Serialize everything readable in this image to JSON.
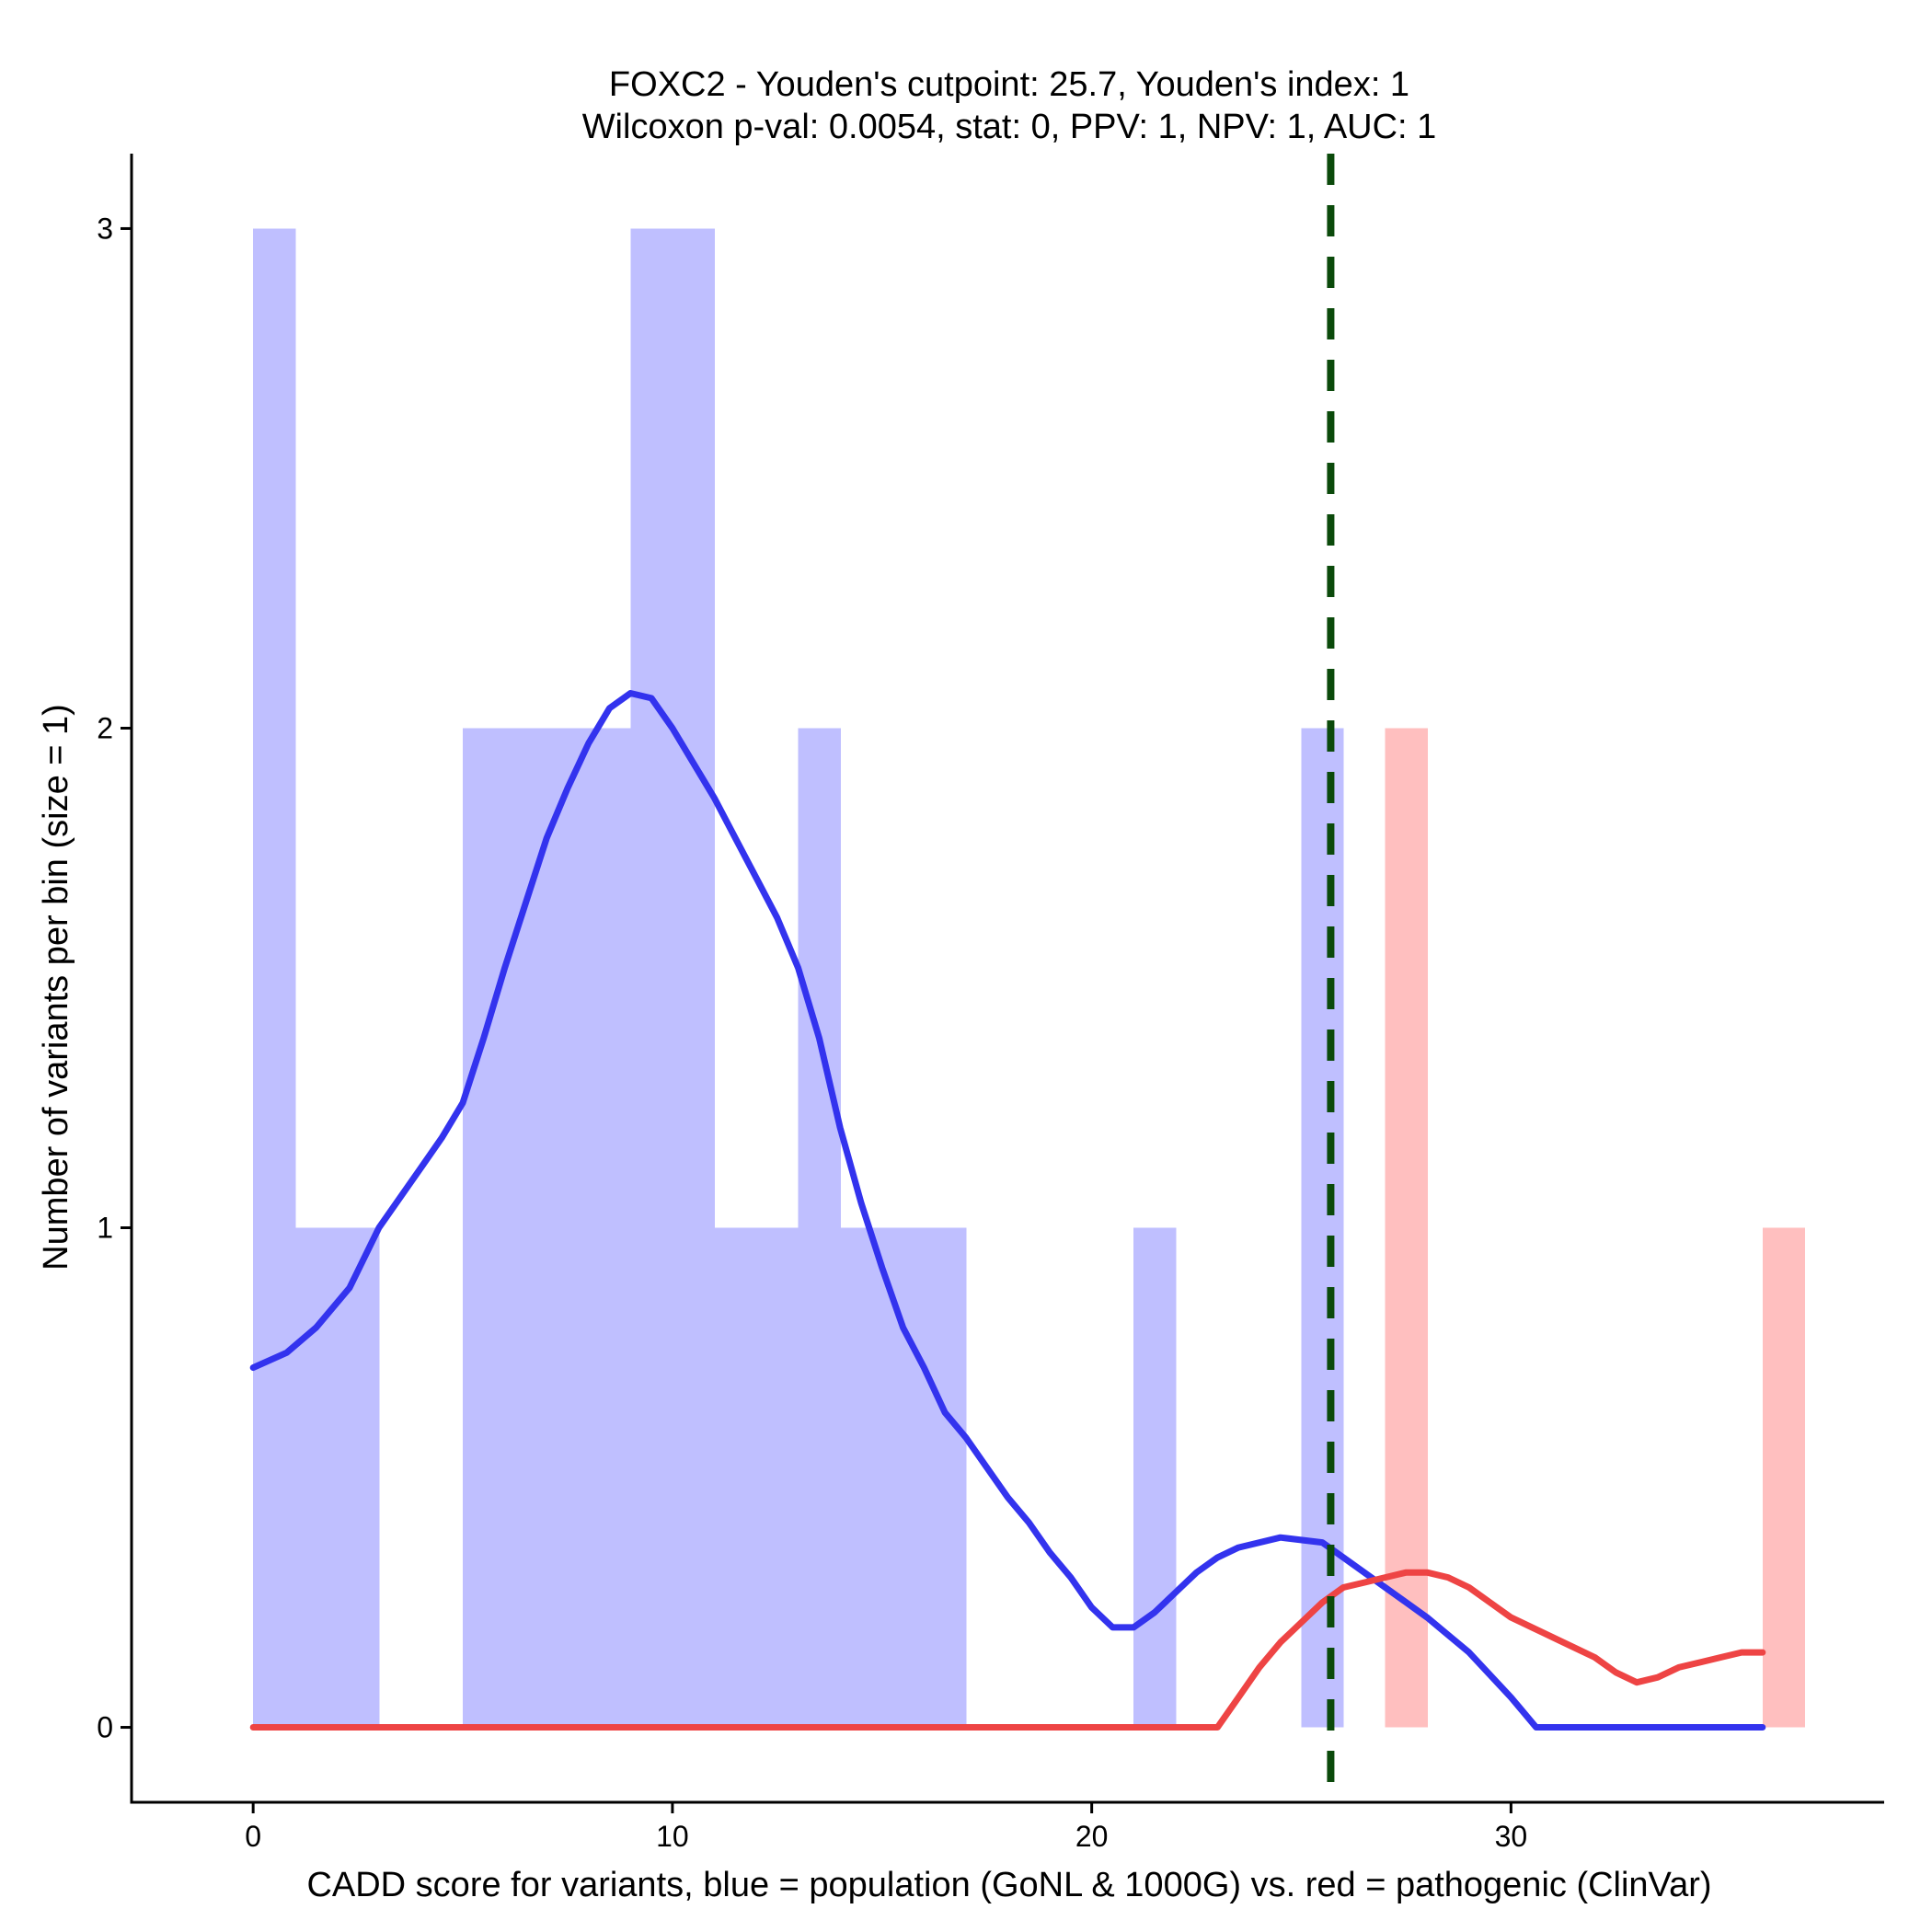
{
  "chart_data": {
    "type": "bar",
    "title": "FOXC2 - Youden's cutpoint: 25.7, Youden's index: 1",
    "subtitle": "Wilcoxon p-val: 0.0054, stat: 0, PPV: 1, NPV: 1, AUC: 1",
    "xlabel": "CADD score for variants, blue = population (GoNL & 1000G) vs. red = pathogenic (ClinVar)",
    "ylabel": "Number of variants per bin (size = 1)",
    "xlim": [
      -2.9,
      38.9
    ],
    "ylim": [
      -0.15,
      3.15
    ],
    "x_ticks": [
      0,
      10,
      20,
      30
    ],
    "y_ticks": [
      0,
      1,
      2,
      3
    ],
    "grid": false,
    "bin_width": 1,
    "series": [
      {
        "color": "#BFBFFF",
        "kind": "histogram",
        "bins": [
          {
            "start": 0,
            "count": 3
          },
          {
            "start": 1,
            "count": 1
          },
          {
            "start": 2,
            "count": 1
          },
          {
            "start": 5,
            "count": 2
          },
          {
            "start": 6,
            "count": 2
          },
          {
            "start": 7,
            "count": 2
          },
          {
            "start": 8,
            "count": 2
          },
          {
            "start": 9,
            "count": 3
          },
          {
            "start": 10,
            "count": 3
          },
          {
            "start": 11,
            "count": 1
          },
          {
            "start": 12,
            "count": 1
          },
          {
            "start": 13,
            "count": 2
          },
          {
            "start": 14,
            "count": 1
          },
          {
            "start": 15,
            "count": 1
          },
          {
            "start": 16,
            "count": 1
          },
          {
            "start": 21,
            "count": 1
          },
          {
            "start": 25,
            "count": 2
          }
        ]
      },
      {
        "color": "#FFBFBF",
        "kind": "histogram",
        "bins": [
          {
            "start": 27,
            "count": 2
          },
          {
            "start": 36,
            "count": 1
          }
        ]
      }
    ],
    "density_lines": [
      {
        "color": "#3333EE",
        "points": [
          [
            0,
            0.72
          ],
          [
            0.8,
            0.75
          ],
          [
            1.5,
            0.8
          ],
          [
            2.3,
            0.88
          ],
          [
            3,
            1.0
          ],
          [
            4,
            1.12
          ],
          [
            4.5,
            1.18
          ],
          [
            5,
            1.25
          ],
          [
            5.5,
            1.38
          ],
          [
            6,
            1.52
          ],
          [
            6.5,
            1.65
          ],
          [
            7,
            1.78
          ],
          [
            7.5,
            1.88
          ],
          [
            8,
            1.97
          ],
          [
            8.5,
            2.04
          ],
          [
            9,
            2.07
          ],
          [
            9.5,
            2.06
          ],
          [
            10,
            2.0
          ],
          [
            10.5,
            1.93
          ],
          [
            11,
            1.86
          ],
          [
            11.5,
            1.78
          ],
          [
            12,
            1.7
          ],
          [
            12.5,
            1.62
          ],
          [
            13,
            1.52
          ],
          [
            13.5,
            1.38
          ],
          [
            14,
            1.2
          ],
          [
            14.5,
            1.05
          ],
          [
            15,
            0.92
          ],
          [
            15.5,
            0.8
          ],
          [
            16,
            0.72
          ],
          [
            16.5,
            0.63
          ],
          [
            17,
            0.58
          ],
          [
            17.5,
            0.52
          ],
          [
            18,
            0.46
          ],
          [
            18.5,
            0.41
          ],
          [
            19,
            0.35
          ],
          [
            19.5,
            0.3
          ],
          [
            20,
            0.24
          ],
          [
            20.5,
            0.2
          ],
          [
            21,
            0.2
          ],
          [
            21.5,
            0.23
          ],
          [
            22,
            0.27
          ],
          [
            22.5,
            0.31
          ],
          [
            23,
            0.34
          ],
          [
            23.5,
            0.36
          ],
          [
            24.5,
            0.38
          ],
          [
            25.5,
            0.37
          ],
          [
            26,
            0.34
          ],
          [
            27,
            0.28
          ],
          [
            28,
            0.22
          ],
          [
            29,
            0.15
          ],
          [
            30,
            0.06
          ],
          [
            30.6,
            0.0
          ],
          [
            36,
            0.0
          ]
        ]
      },
      {
        "color": "#EE4444",
        "points": [
          [
            0,
            0.0
          ],
          [
            23,
            0.0
          ],
          [
            23.5,
            0.06
          ],
          [
            24,
            0.12
          ],
          [
            24.5,
            0.17
          ],
          [
            25,
            0.21
          ],
          [
            25.5,
            0.25
          ],
          [
            26,
            0.28
          ],
          [
            26.5,
            0.29
          ],
          [
            27,
            0.3
          ],
          [
            27.5,
            0.31
          ],
          [
            28,
            0.31
          ],
          [
            28.5,
            0.3
          ],
          [
            29,
            0.28
          ],
          [
            29.5,
            0.25
          ],
          [
            30,
            0.22
          ],
          [
            30.5,
            0.2
          ],
          [
            31,
            0.18
          ],
          [
            31.5,
            0.16
          ],
          [
            32,
            0.14
          ],
          [
            32.5,
            0.11
          ],
          [
            33,
            0.09
          ],
          [
            33.5,
            0.1
          ],
          [
            34,
            0.12
          ],
          [
            34.5,
            0.13
          ],
          [
            35,
            0.14
          ],
          [
            35.5,
            0.15
          ],
          [
            36,
            0.15
          ]
        ]
      }
    ],
    "reference_lines": [
      {
        "axis": "x",
        "value": 25.7,
        "color": "#0B4A0B",
        "style": "dashed"
      }
    ]
  }
}
